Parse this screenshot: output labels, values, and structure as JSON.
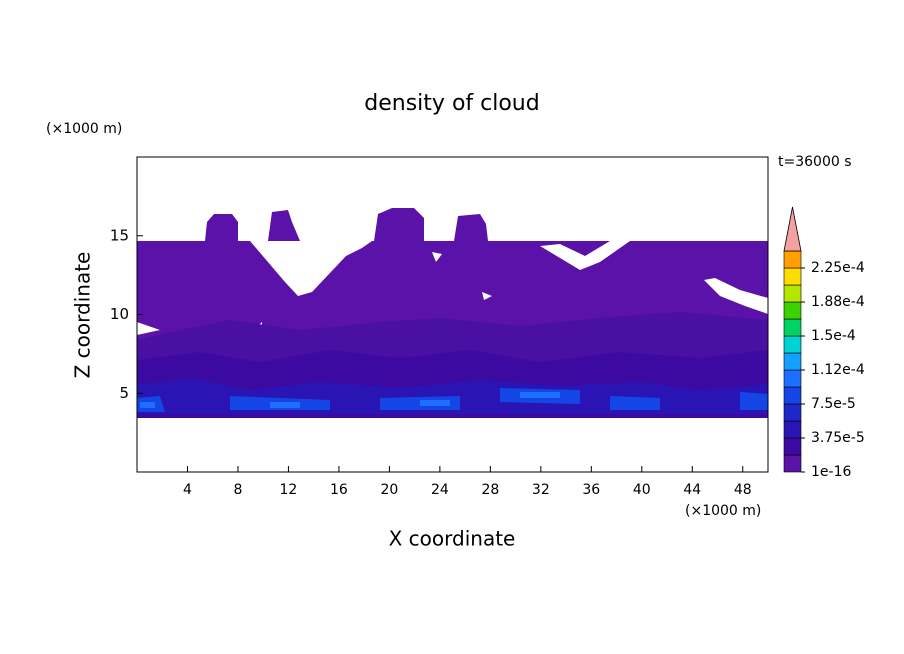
{
  "chart_data": {
    "type": "contour",
    "title": "density of cloud",
    "x_label": "X coordinate",
    "y_label": "Z coordinate",
    "x_unit": "(×1000 m)",
    "y_unit": "(×1000 m)",
    "time_label": "t=36000 s",
    "xlim": [
      0,
      50
    ],
    "xticks": [
      4,
      8,
      12,
      16,
      20,
      24,
      28,
      32,
      36,
      40,
      44,
      48
    ],
    "ylim": [
      0,
      20
    ],
    "yticks": [
      5,
      10,
      15
    ],
    "colorbar": {
      "lim": [
        1e-16,
        0.00024375
      ],
      "ticks": [
        {
          "value": 1e-16,
          "label": "1e-16"
        },
        {
          "value": 3.75e-05,
          "label": "3.75e-5"
        },
        {
          "value": 7.5e-05,
          "label": "7.5e-5"
        },
        {
          "value": 0.0001125,
          "label": "1.12e-4"
        },
        {
          "value": 0.00015,
          "label": "1.5e-4"
        },
        {
          "value": 0.0001875,
          "label": "1.88e-4"
        },
        {
          "value": 0.000225,
          "label": "2.25e-4"
        }
      ],
      "colors": [
        "#5a12a8",
        "#3c0aa0",
        "#2a14b4",
        "#1e28c8",
        "#1446e6",
        "#1e6eff",
        "#14a0ff",
        "#00d2d2",
        "#00d264",
        "#3cd200",
        "#b4e600",
        "#ffdc00",
        "#ffa000",
        "#ff6400",
        "#ff2800"
      ],
      "extend_color": "#f4a0a0"
    }
  }
}
